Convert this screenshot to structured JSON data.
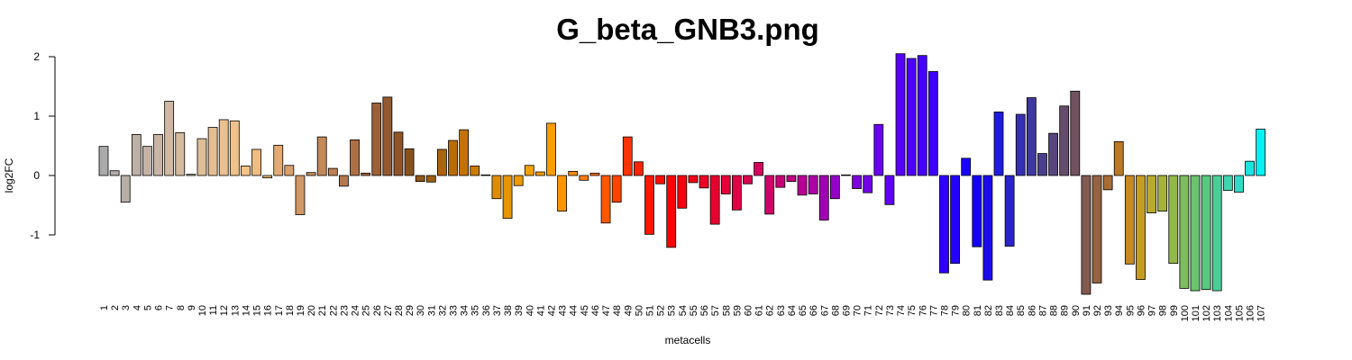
{
  "chart_data": {
    "type": "bar",
    "title": "G_beta_GNB3.png",
    "xlabel": "metacells",
    "ylabel": "log2FC",
    "ylim": [
      -2,
      2
    ],
    "y_ticks": [
      -1,
      0,
      1,
      2
    ],
    "grid": false,
    "categories": [
      "1",
      "2",
      "3",
      "4",
      "5",
      "6",
      "7",
      "8",
      "9",
      "10",
      "11",
      "12",
      "13",
      "14",
      "15",
      "16",
      "17",
      "18",
      "19",
      "20",
      "21",
      "22",
      "23",
      "24",
      "25",
      "26",
      "27",
      "28",
      "29",
      "30",
      "31",
      "32",
      "33",
      "34",
      "35",
      "36",
      "37",
      "38",
      "39",
      "40",
      "41",
      "42",
      "43",
      "44",
      "45",
      "46",
      "47",
      "48",
      "49",
      "50",
      "51",
      "52",
      "53",
      "54",
      "55",
      "56",
      "57",
      "58",
      "59",
      "60",
      "61",
      "62",
      "63",
      "64",
      "65",
      "66",
      "67",
      "68",
      "69",
      "70",
      "71",
      "72",
      "73",
      "74",
      "75",
      "76",
      "77",
      "78",
      "79",
      "80",
      "81",
      "82",
      "83",
      "84",
      "85",
      "86",
      "87",
      "88",
      "89",
      "90",
      "91",
      "92",
      "93",
      "94",
      "95",
      "96",
      "97",
      "98",
      "99",
      "100",
      "101",
      "102",
      "103",
      "104",
      "105",
      "106",
      "107"
    ],
    "values": [
      0.49,
      0.08,
      -0.45,
      0.69,
      0.49,
      0.69,
      1.25,
      0.72,
      0.02,
      0.62,
      0.81,
      0.94,
      0.92,
      0.16,
      0.44,
      -0.04,
      0.51,
      0.17,
      -0.66,
      0.05,
      0.65,
      0.12,
      -0.18,
      0.6,
      0.04,
      1.22,
      1.32,
      0.73,
      0.45,
      -0.1,
      -0.11,
      0.44,
      0.59,
      0.77,
      0.16,
      0.01,
      -0.39,
      -0.72,
      -0.17,
      0.17,
      0.06,
      0.88,
      -0.6,
      0.07,
      -0.08,
      0.04,
      -0.8,
      -0.45,
      0.65,
      0.23,
      -0.99,
      -0.14,
      -1.21,
      -0.55,
      -0.12,
      -0.21,
      -0.82,
      -0.31,
      -0.58,
      -0.14,
      0.22,
      -0.65,
      -0.2,
      -0.1,
      -0.33,
      -0.31,
      -0.75,
      -0.39,
      0.01,
      -0.22,
      -0.29,
      0.86,
      -0.49,
      2.05,
      1.97,
      2.02,
      1.75,
      -1.64,
      -1.48,
      0.29,
      -1.2,
      -1.76,
      1.07,
      -1.19,
      1.03,
      1.31,
      0.37,
      0.71,
      1.17,
      1.42,
      -2.0,
      -1.81,
      -0.24,
      0.57,
      -1.49,
      -1.75,
      -0.63,
      -0.6,
      -1.48,
      -1.9,
      -1.94,
      -1.92,
      -1.94,
      -0.25,
      -0.28,
      0.24,
      0.78
    ],
    "colors": [
      "#aaaaaa",
      "#b1aca9",
      "#b7aea7",
      "#bdb0a6",
      "#c3b2a5",
      "#c9b5a5",
      "#cfb9a2",
      "#d4ba9f",
      "#d8bc9c",
      "#debd98",
      "#e3be94",
      "#eac08f",
      "#f0c18a",
      "#f5c286",
      "#f0bc80",
      "#e8b37a",
      "#e2ab73",
      "#d8a16c",
      "#d09865",
      "#c99060",
      "#c3895a",
      "#bc8254",
      "#b6784c",
      "#ae6f44",
      "#a5663e",
      "#9d5f38",
      "#955931",
      "#8f5428",
      "#88521e",
      "#915717",
      "#9e5e12",
      "#aa650f",
      "#b66c0b",
      "#c27307",
      "#cc7b05",
      "#d68302",
      "#df8d00",
      "#e79400",
      "#ee9a00",
      "#f39f00",
      "#f89e00",
      "#ff9c00",
      "#ff9300",
      "#ff8a00",
      "#ff7d00",
      "#ff6c00",
      "#ff5800",
      "#ff4400",
      "#ff3300",
      "#ff2400",
      "#ff1600",
      "#ff0c00",
      "#fc0205",
      "#f6000f",
      "#f10019",
      "#ec0024",
      "#e8002e",
      "#e40038",
      "#e00043",
      "#db004f",
      "#d6005c",
      "#cf0069",
      "#c80077",
      "#c00085",
      "#b80094",
      "#ad00a4",
      "#a200b4",
      "#9600c4",
      "#8a00d2",
      "#7e00de",
      "#7200e8",
      "#6800ef",
      "#6000f5",
      "#5700fa",
      "#4e00fd",
      "#4600ff",
      "#3e00ff",
      "#3000ff",
      "#2400ff",
      "#1a00ff",
      "#1400f8",
      "#1a0cea",
      "#201adf",
      "#2a24c8",
      "#3530b2",
      "#3f389e",
      "#4a3f8c",
      "#57467c",
      "#654c6c",
      "#73525f",
      "#835a50",
      "#936342",
      "#a86d34",
      "#bb7828",
      "#c58a20",
      "#c59d24",
      "#b9aa2e",
      "#a6b23b",
      "#92b84b",
      "#7dbd5d",
      "#69c36f",
      "#58c983",
      "#4ace98",
      "#3fd4ae",
      "#2fdbc6",
      "#1ae4df",
      "#00f2f2"
    ]
  }
}
